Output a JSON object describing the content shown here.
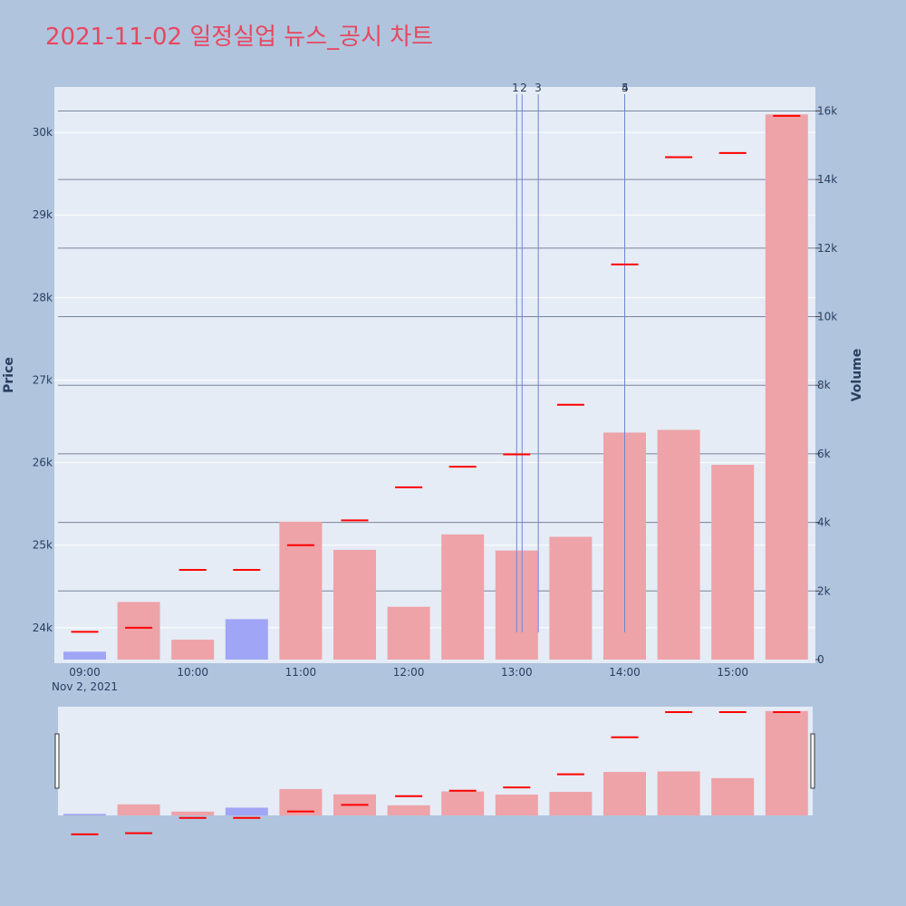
{
  "chart_data": {
    "type": "bar",
    "title": "2021-11-02 일정실업 뉴스_공시 차트",
    "x": [
      "09:00",
      "09:30",
      "10:00",
      "10:30",
      "11:00",
      "11:30",
      "12:00",
      "12:30",
      "13:00",
      "13:30",
      "14:00",
      "14:30",
      "15:00",
      "15:30"
    ],
    "x_tick_labels": [
      "09:00",
      "10:00",
      "11:00",
      "12:00",
      "13:00",
      "14:00",
      "15:00"
    ],
    "x_date_label": "Nov 2, 2021",
    "series": [
      {
        "axis": "right",
        "type": "bar",
        "values": [
          230,
          1680,
          580,
          1180,
          4020,
          3200,
          1540,
          3650,
          3180,
          3580,
          6620,
          6700,
          5680,
          15900
        ],
        "direction": [
          "down",
          "up",
          "up",
          "down",
          "up",
          "up",
          "up",
          "up",
          "up",
          "up",
          "up",
          "up",
          "up",
          "up"
        ]
      },
      {
        "axis": "left",
        "type": "line",
        "values": [
          23950,
          24000,
          24700,
          24700,
          25000,
          25300,
          25700,
          25950,
          26100,
          26700,
          28400,
          29700,
          29750,
          30200
        ]
      }
    ],
    "ylabel": "Price",
    "y2label": "Volume",
    "ylim": [
      23570,
      30550
    ],
    "y2lim": [
      0,
      16700
    ],
    "y_tick_labels": [
      "24k",
      "25k",
      "26k",
      "27k",
      "28k",
      "29k",
      "30k"
    ],
    "y_ticks": [
      24000,
      25000,
      26000,
      27000,
      28000,
      29000,
      30000
    ],
    "y2_tick_labels": [
      "0",
      "2k",
      "4k",
      "6k",
      "8k",
      "10k",
      "12k",
      "14k",
      "16k"
    ],
    "y2_ticks": [
      0,
      2000,
      4000,
      6000,
      8000,
      10000,
      12000,
      14000,
      16000
    ],
    "news_markers": [
      {
        "label": "1",
        "time": "13:00"
      },
      {
        "label": "2",
        "time": "13:03"
      },
      {
        "label": "3",
        "time": "13:12"
      },
      {
        "label": "4",
        "time": "14:00"
      },
      {
        "label": "5",
        "time": "14:00"
      }
    ],
    "colors": {
      "up": "#eda3a8",
      "down": "#a1a5f5",
      "price": "#ff0000",
      "news": "#6b87d6",
      "plot_bg": "#e5ecf6",
      "page_bg": "#b0c4de"
    }
  }
}
